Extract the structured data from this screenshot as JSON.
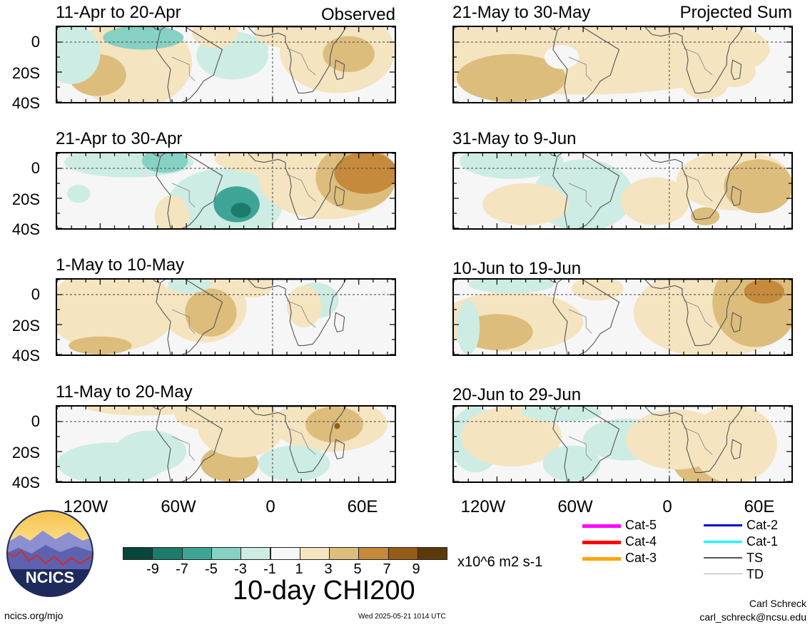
{
  "header": {
    "observed_tag": "Observed",
    "projected_tag": "Projected Sum"
  },
  "panels": {
    "left": [
      "11-Apr to 20-Apr",
      "21-Apr to 30-Apr",
      "1-May to 10-May",
      "11-May to 20-May"
    ],
    "right": [
      "21-May to 30-May",
      "31-May to 9-Jun",
      "10-Jun to 19-Jun",
      "20-Jun to 29-Jun"
    ]
  },
  "axes": {
    "y_labels": [
      "0",
      "20S",
      "40S"
    ],
    "x_labels": [
      "120W",
      "60W",
      "0",
      "60E"
    ]
  },
  "colorbar": {
    "ticks": [
      "-9",
      "-7",
      "-5",
      "-3",
      "-1",
      "1",
      "3",
      "5",
      "7",
      "9"
    ],
    "units": "x10^6 m2 s-1",
    "colors": [
      "#07473a",
      "#1c7b6b",
      "#3ea596",
      "#87d1c3",
      "#cdece4",
      "#f6f6f6",
      "#f4e4c0",
      "#dcbd7c",
      "#c58a3c",
      "#955d17",
      "#5c3a08"
    ]
  },
  "title": "10-day CHI200",
  "logo": {
    "text": "NCICS"
  },
  "legend": [
    {
      "label": "Cat-5",
      "color": "#ff00ff"
    },
    {
      "label": "Cat-4",
      "color": "#ff0000"
    },
    {
      "label": "Cat-3",
      "color": "#ffa500"
    },
    {
      "label": "Cat-2",
      "color": "#0000cc"
    },
    {
      "label": "Cat-1",
      "color": "#00ffff"
    },
    {
      "label": "TS",
      "color": "#555555"
    },
    {
      "label": "TD",
      "color": "#aaaaaa"
    }
  ],
  "footer": {
    "url": "ncics.org/mjo",
    "timestamp": "Wed 2025-05-21 1014 UTC",
    "author": "Carl Schreck",
    "email": "carl_schreck@ncsu.edu"
  }
}
